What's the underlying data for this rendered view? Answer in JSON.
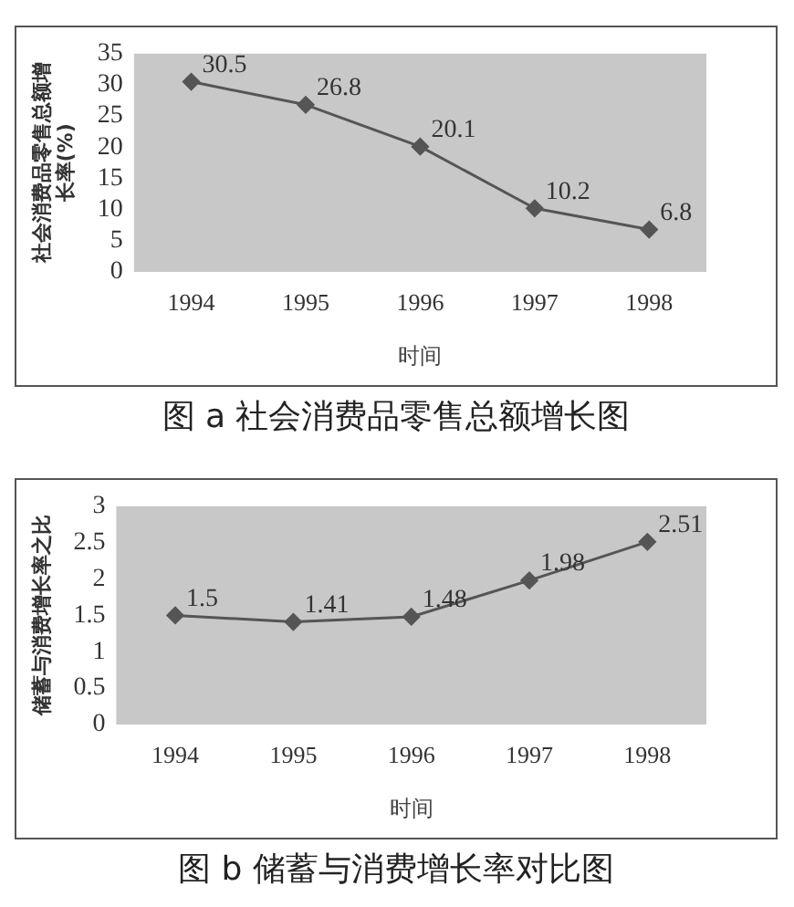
{
  "chart_data": [
    {
      "type": "line",
      "title": "图 a 社会消费品零售总额增长图",
      "xlabel": "时间",
      "ylabel": "社会消费品零售总额增长率(%)",
      "categories": [
        "1994",
        "1995",
        "1996",
        "1997",
        "1998"
      ],
      "series": [
        {
          "color": "#555555",
          "values": [
            30.5,
            26.8,
            20.1,
            10.2,
            6.8
          ]
        }
      ],
      "ylim": [
        0,
        35
      ],
      "yticks": [
        0,
        5,
        10,
        15,
        20,
        25,
        30,
        35
      ],
      "grid": false,
      "legend": false,
      "marker": "diamond",
      "line_style": "solid",
      "data_labels": true
    },
    {
      "type": "line",
      "title": "图 b 储蓄与消费增长率对比图",
      "xlabel": "时间",
      "ylabel": "储蓄与消费增长率之比",
      "categories": [
        "1994",
        "1995",
        "1996",
        "1997",
        "1998"
      ],
      "series": [
        {
          "color": "#555555",
          "values": [
            1.5,
            1.41,
            1.48,
            1.98,
            2.51
          ]
        }
      ],
      "ylim": [
        0,
        3
      ],
      "yticks": [
        0,
        0.5,
        1,
        1.5,
        2,
        2.5,
        3
      ],
      "grid": false,
      "legend": false,
      "marker": "diamond",
      "line_style": "solid",
      "data_labels": true
    }
  ]
}
